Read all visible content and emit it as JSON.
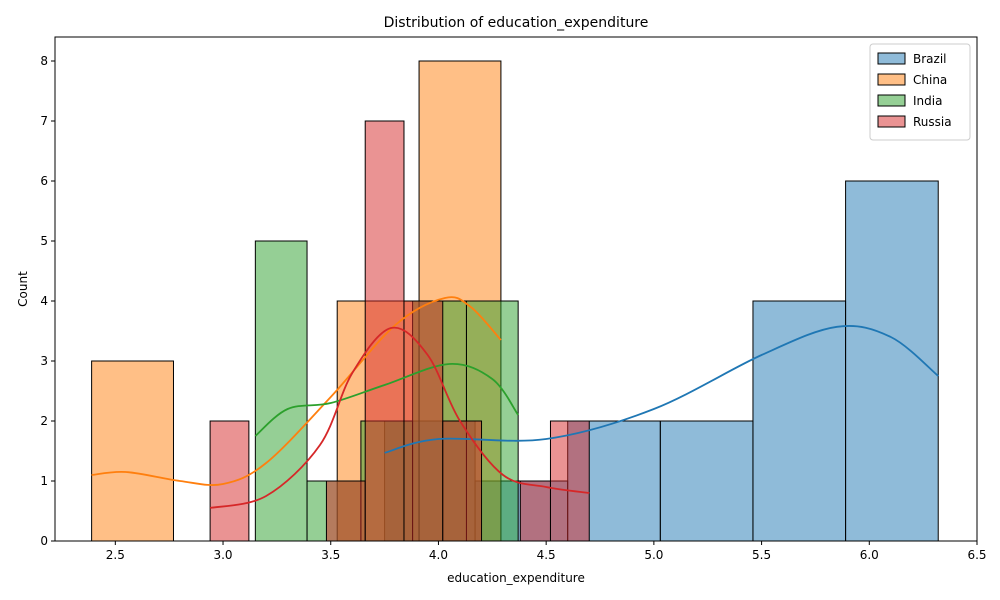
{
  "chart_data": {
    "type": "histogram",
    "title": "Distribution of education_expenditure",
    "xlabel": "education_expenditure",
    "ylabel": "Count",
    "xlim": [
      2.22,
      6.5
    ],
    "ylim": [
      0,
      8.4
    ],
    "xticks": [
      2.5,
      3.0,
      3.5,
      4.0,
      4.5,
      5.0,
      5.5,
      6.0,
      6.5
    ],
    "xtick_labels": [
      "2.5",
      "3.0",
      "3.5",
      "4.0",
      "4.5",
      "5.0",
      "5.5",
      "6.0",
      "6.5"
    ],
    "yticks": [
      0,
      1,
      2,
      3,
      4,
      5,
      6,
      7,
      8
    ],
    "ytick_labels": [
      "0",
      "1",
      "2",
      "3",
      "4",
      "5",
      "6",
      "7",
      "8"
    ],
    "grid": false,
    "legend_position": "top-right",
    "series": [
      {
        "name": "Brazil",
        "color": "#1f77b4",
        "bins": [
          [
            3.75,
            4.17,
            2
          ],
          [
            4.17,
            4.6,
            1
          ],
          [
            4.6,
            5.03,
            2
          ],
          [
            5.03,
            5.46,
            2
          ],
          [
            5.46,
            5.89,
            4
          ],
          [
            5.89,
            6.32,
            6
          ]
        ],
        "kde": [
          [
            3.75,
            1.47
          ],
          [
            4.0,
            1.7
          ],
          [
            4.5,
            1.7
          ],
          [
            5.0,
            2.2
          ],
          [
            5.5,
            3.1
          ],
          [
            5.85,
            3.57
          ],
          [
            6.1,
            3.4
          ],
          [
            6.32,
            2.75
          ]
        ]
      },
      {
        "name": "China",
        "color": "#ff7f0e",
        "bins": [
          [
            2.39,
            2.77,
            3
          ],
          [
            3.53,
            3.91,
            4
          ],
          [
            3.91,
            4.29,
            8
          ]
        ],
        "kde": [
          [
            2.39,
            1.1
          ],
          [
            2.55,
            1.15
          ],
          [
            2.8,
            1.0
          ],
          [
            3.0,
            0.95
          ],
          [
            3.2,
            1.3
          ],
          [
            3.5,
            2.4
          ],
          [
            3.8,
            3.6
          ],
          [
            4.03,
            4.05
          ],
          [
            4.15,
            3.9
          ],
          [
            4.29,
            3.35
          ]
        ]
      },
      {
        "name": "India",
        "color": "#2ca02c",
        "bins": [
          [
            3.15,
            3.39,
            5
          ],
          [
            3.39,
            3.64,
            1
          ],
          [
            3.64,
            3.88,
            2
          ],
          [
            3.88,
            4.13,
            4
          ],
          [
            4.13,
            4.37,
            4
          ]
        ],
        "kde": [
          [
            3.15,
            1.75
          ],
          [
            3.3,
            2.2
          ],
          [
            3.5,
            2.3
          ],
          [
            3.75,
            2.6
          ],
          [
            4.05,
            2.95
          ],
          [
            4.25,
            2.7
          ],
          [
            4.37,
            2.1
          ]
        ]
      },
      {
        "name": "Russia",
        "color": "#d62728",
        "bins": [
          [
            2.94,
            3.12,
            2
          ],
          [
            3.12,
            3.3,
            0
          ],
          [
            3.3,
            3.48,
            0
          ],
          [
            3.48,
            3.66,
            1
          ],
          [
            3.66,
            3.84,
            7
          ],
          [
            3.84,
            4.02,
            4
          ],
          [
            4.02,
            4.2,
            2
          ],
          [
            4.2,
            4.38,
            0
          ],
          [
            4.38,
            4.52,
            1
          ],
          [
            4.52,
            4.7,
            2
          ]
        ],
        "kde": [
          [
            2.94,
            0.55
          ],
          [
            3.2,
            0.75
          ],
          [
            3.45,
            1.6
          ],
          [
            3.6,
            2.8
          ],
          [
            3.78,
            3.55
          ],
          [
            3.95,
            3.1
          ],
          [
            4.1,
            2.0
          ],
          [
            4.3,
            1.1
          ],
          [
            4.5,
            0.9
          ],
          [
            4.7,
            0.8
          ]
        ]
      }
    ]
  }
}
